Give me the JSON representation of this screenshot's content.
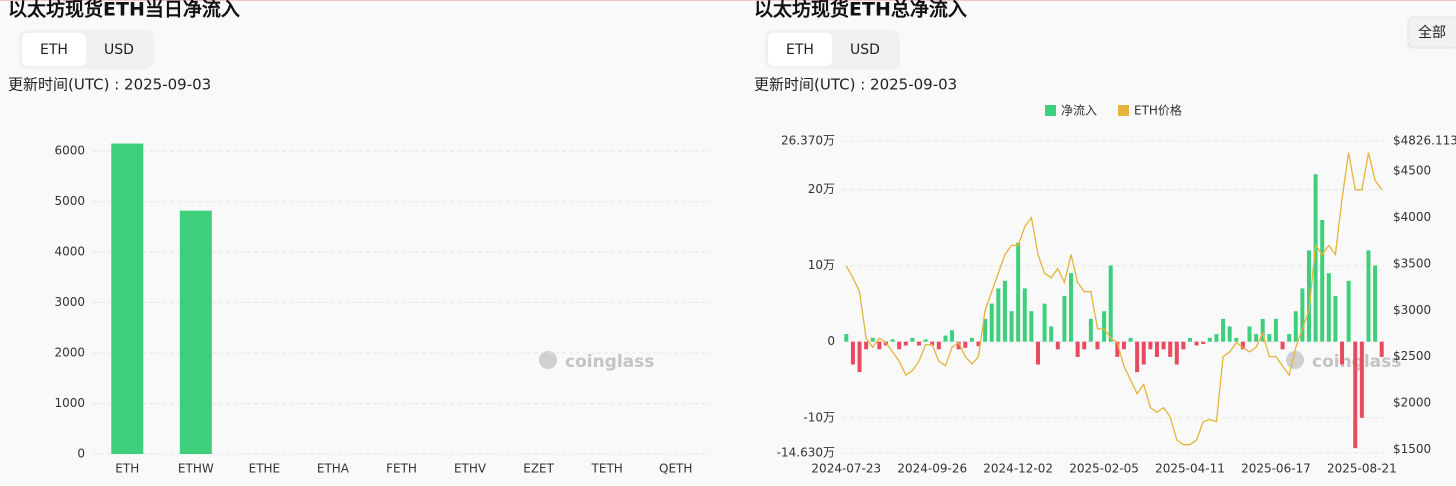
{
  "ui": {
    "left_tabs": [
      "ETH",
      "USD"
    ],
    "right_tabs": [
      "ETH",
      "USD"
    ],
    "left_update": "更新时间(UTC) : 2025-09-03",
    "right_update": "更新时间(UTC) : 2025-09-03",
    "range_button": "全部",
    "watermark": "coinglass"
  },
  "chart_data": [
    {
      "type": "bar",
      "title": "以太坊现货ETH当日净流入",
      "categories": [
        "ETH",
        "ETHW",
        "ETHE",
        "ETHA",
        "FETH",
        "ETHV",
        "EZET",
        "TETH",
        "QETH"
      ],
      "values": [
        6150,
        4820,
        0,
        0,
        0,
        0,
        0,
        0,
        0
      ],
      "color": "#3ecf7d",
      "ylim": [
        0,
        6200
      ],
      "yticks": [
        0,
        1000,
        2000,
        3000,
        4000,
        5000,
        6000
      ],
      "grid": true
    },
    {
      "type": "combo",
      "title": "以太坊现货ETH总净流入",
      "grid": true,
      "legend": "top",
      "categories": [
        "2024-07-23",
        null,
        null,
        null,
        null,
        null,
        null,
        null,
        null,
        null,
        null,
        null,
        null,
        "2024-09-26",
        null,
        null,
        null,
        null,
        null,
        null,
        null,
        null,
        null,
        null,
        null,
        null,
        "2024-12-02",
        null,
        null,
        null,
        null,
        null,
        null,
        null,
        null,
        null,
        null,
        null,
        null,
        "2025-02-05",
        null,
        null,
        null,
        null,
        null,
        null,
        null,
        null,
        null,
        null,
        null,
        null,
        "2025-04-11",
        null,
        null,
        null,
        null,
        null,
        null,
        null,
        null,
        null,
        null,
        null,
        null,
        "2025-06-17",
        null,
        null,
        null,
        null,
        null,
        null,
        null,
        null,
        null,
        null,
        null,
        null,
        "2025-08-21",
        null,
        null,
        null
      ],
      "ylim": [
        -14.63,
        26.37
      ],
      "yticks": [
        {
          "value": 26.37,
          "label": "26.370万"
        },
        {
          "value": 20,
          "label": "20万"
        },
        {
          "value": 10,
          "label": "10万"
        },
        0,
        {
          "value": -10,
          "label": "-10万"
        },
        {
          "value": -14.63,
          "label": "-14.630万"
        }
      ],
      "y2lim": [
        1460,
        4826.113
      ],
      "y2ticks": [
        {
          "value": 4826.113,
          "label": "$4826.113"
        },
        {
          "value": 4500,
          "label": "$4500"
        },
        {
          "value": 4000,
          "label": "$4000"
        },
        {
          "value": 3500,
          "label": "$3500"
        },
        {
          "value": 3000,
          "label": "$3000"
        },
        {
          "value": 2500,
          "label": "$2500"
        },
        {
          "value": 2000,
          "label": "$2000"
        },
        {
          "value": 1500,
          "label": "$1500"
        }
      ],
      "series": [
        {
          "name": "净流入",
          "type": "bar",
          "color": "#3ecf7d",
          "negative_color": "#e84a5f",
          "values": [
            1,
            -3,
            -4,
            -1,
            0.5,
            -1,
            -0.5,
            0.3,
            -1,
            -0.5,
            0.5,
            -0.5,
            0.3,
            -0.5,
            -1,
            0.8,
            1.5,
            -1,
            -0.8,
            0.5,
            -0.6,
            3,
            5,
            7,
            8,
            4,
            13,
            7,
            4,
            -3,
            5,
            2,
            -1,
            6,
            9,
            -2,
            -1,
            3,
            -1,
            4,
            10,
            -2,
            -1,
            0.5,
            -4,
            -3,
            -1,
            -2,
            -1,
            -2,
            -3,
            -1,
            0.5,
            -0.5,
            -0.3,
            0.5,
            1,
            3,
            2,
            0.5,
            -1,
            2,
            1,
            3,
            1,
            3,
            -1,
            1,
            4,
            7,
            12,
            22,
            16,
            9,
            6,
            -3,
            8,
            -14,
            -10,
            12,
            10,
            -2
          ]
        },
        {
          "name": "ETH价格",
          "type": "line",
          "axis": "y2",
          "color": "#e6b43c",
          "values": [
            3480,
            3350,
            3200,
            2700,
            2600,
            2700,
            2650,
            2550,
            2450,
            2300,
            2350,
            2450,
            2630,
            2630,
            2450,
            2400,
            2600,
            2650,
            2500,
            2420,
            2500,
            3000,
            3200,
            3400,
            3600,
            3700,
            3700,
            3900,
            4000,
            3600,
            3400,
            3350,
            3450,
            3300,
            3600,
            3300,
            3200,
            3200,
            2800,
            2800,
            2700,
            2650,
            2400,
            2250,
            2100,
            2200,
            1950,
            1900,
            1950,
            1850,
            1600,
            1550,
            1550,
            1600,
            1800,
            1820,
            1800,
            2500,
            2550,
            2650,
            2600,
            2550,
            2600,
            2750,
            2500,
            2500,
            2400,
            2300,
            2600,
            2800,
            3000,
            3700,
            3600,
            3700,
            3600,
            4200,
            4700,
            4300,
            4300,
            4700,
            4400,
            4300
          ]
        }
      ]
    }
  ]
}
